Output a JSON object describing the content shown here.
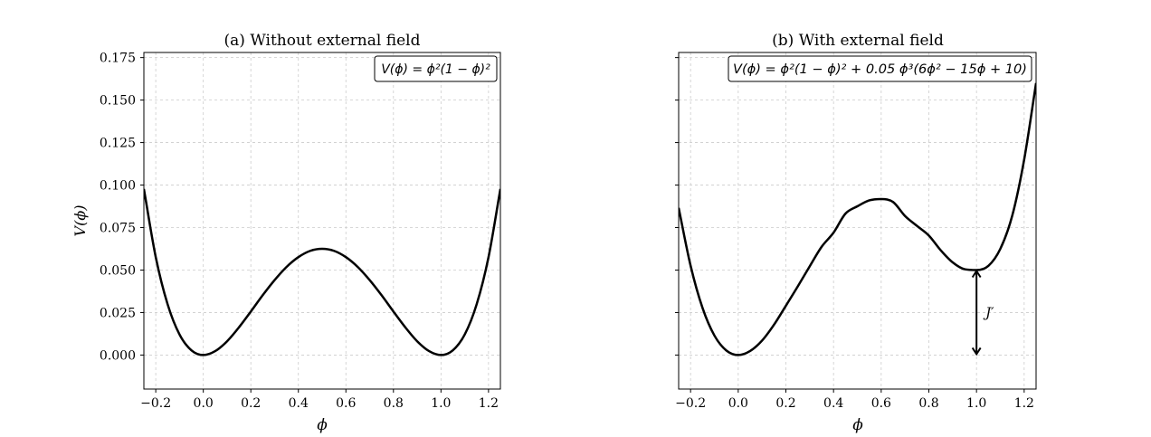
{
  "chart_data": [
    {
      "type": "line",
      "title": "(a) Without external field",
      "xlabel": "ϕ",
      "ylabel": "V(ϕ)",
      "xlim": [
        -0.25,
        1.25
      ],
      "ylim": [
        -0.02,
        0.178
      ],
      "xticks": [
        -0.2,
        0.0,
        0.2,
        0.4,
        0.6,
        0.8,
        1.0,
        1.2
      ],
      "xtick_labels": [
        "−0.2",
        "0.0",
        "0.2",
        "0.4",
        "0.6",
        "0.8",
        "1.0",
        "1.2"
      ],
      "yticks": [
        0.0,
        0.025,
        0.05,
        0.075,
        0.1,
        0.125,
        0.15,
        0.175
      ],
      "ytick_labels": [
        "0.000",
        "0.025",
        "0.050",
        "0.075",
        "0.100",
        "0.125",
        "0.150",
        "0.175"
      ],
      "grid": true,
      "legend_position": "top-right",
      "series": [
        {
          "name": "V(ϕ) = ϕ²(1 − ϕ)²",
          "x": [
            -0.25,
            -0.2,
            -0.15,
            -0.1,
            -0.05,
            0.0,
            0.05,
            0.1,
            0.15,
            0.2,
            0.25,
            0.3,
            0.35,
            0.4,
            0.45,
            0.5,
            0.55,
            0.6,
            0.65,
            0.7,
            0.75,
            0.8,
            0.85,
            0.9,
            0.95,
            1.0,
            1.05,
            1.1,
            1.15,
            1.2,
            1.25
          ],
          "y": [
            0.0977,
            0.0576,
            0.0298,
            0.0121,
            0.0028,
            0.0,
            0.0023,
            0.0081,
            0.0163,
            0.0256,
            0.0352,
            0.0441,
            0.0518,
            0.0576,
            0.0613,
            0.0625,
            0.0613,
            0.0576,
            0.0518,
            0.0441,
            0.0352,
            0.0256,
            0.0163,
            0.0081,
            0.0023,
            0.0,
            0.0028,
            0.0121,
            0.0298,
            0.0576,
            0.0977
          ]
        }
      ]
    },
    {
      "type": "line",
      "title": "(b) With external field",
      "xlabel": "ϕ",
      "ylabel": "",
      "xlim": [
        -0.25,
        1.25
      ],
      "ylim": [
        -0.02,
        0.178
      ],
      "xticks": [
        -0.2,
        0.0,
        0.2,
        0.4,
        0.6,
        0.8,
        1.0,
        1.2
      ],
      "xtick_labels": [
        "−0.2",
        "0.0",
        "0.2",
        "0.4",
        "0.6",
        "0.8",
        "1.0",
        "1.2"
      ],
      "yticks": [
        0.0,
        0.025,
        0.05,
        0.075,
        0.1,
        0.125,
        0.15,
        0.175
      ],
      "ytick_labels": [],
      "grid": true,
      "legend_position": "top-right",
      "series": [
        {
          "name": "V(ϕ) = ϕ²(1 − ϕ)² + 0.05 ϕ³(6ϕ² − 15ϕ + 10)",
          "x": [
            -0.25,
            -0.2,
            -0.15,
            -0.1,
            -0.05,
            0.0,
            0.05,
            0.1,
            0.15,
            0.2,
            0.25,
            0.3,
            0.35,
            0.4,
            0.45,
            0.5,
            0.55,
            0.6,
            0.65,
            0.7,
            0.75,
            0.8,
            0.85,
            0.9,
            0.95,
            1.0,
            1.05,
            1.1,
            1.15,
            1.2,
            1.25
          ],
          "y": [
            0.0866,
            0.0526,
            0.0278,
            0.0115,
            0.0027,
            0.0,
            0.0024,
            0.0085,
            0.0178,
            0.029,
            0.0404,
            0.0522,
            0.0637,
            0.072,
            0.0832,
            0.0875,
            0.091,
            0.0918,
            0.09,
            0.0818,
            0.076,
            0.0703,
            0.0616,
            0.0545,
            0.0505,
            0.05,
            0.0525,
            0.0625,
            0.082,
            0.115,
            0.16
          ]
        }
      ],
      "annotations": [
        {
          "type": "double-arrow",
          "x": 1.0,
          "y_from": 0.0,
          "y_to": 0.05,
          "label": "J′"
        }
      ]
    }
  ]
}
